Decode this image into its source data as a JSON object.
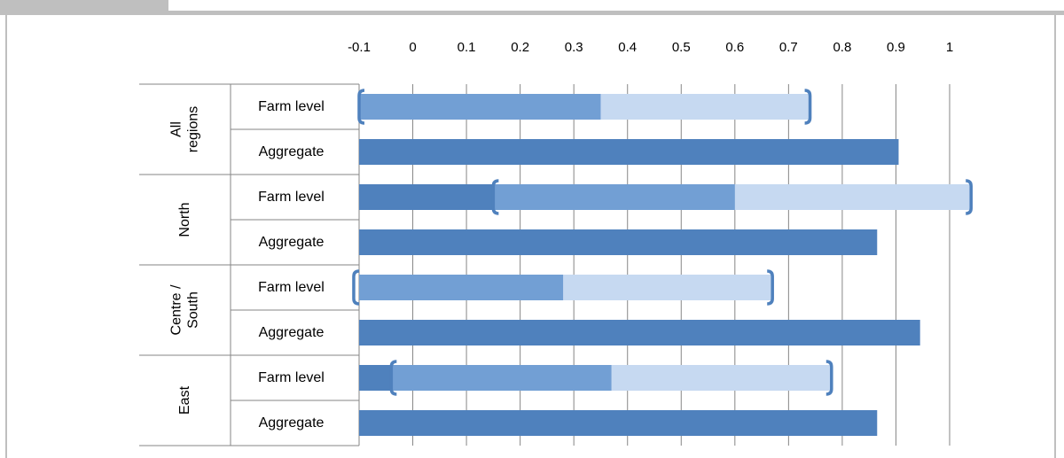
{
  "header": {
    "title_fragment": ""
  },
  "chart_data": {
    "type": "bar",
    "orientation": "horizontal",
    "title": "",
    "xlabel": "",
    "ylabel": "",
    "xlim": [
      -0.1,
      1.0
    ],
    "x_ticks": [
      "-0.1",
      "0",
      "0.1",
      "0.2",
      "0.3",
      "0.4",
      "0.5",
      "0.6",
      "0.7",
      "0.8",
      "0.9",
      "1"
    ],
    "grid": "vertical",
    "legend": "none",
    "colors": {
      "dark_bar": "#4f81bd",
      "mid_bar": "#729fd4",
      "range_band": "#c6d9f1",
      "bracket": "#4f81bd"
    },
    "groups": [
      {
        "label_lines": [
          "All",
          "regions"
        ],
        "rows": [
          {
            "label": "Farm level",
            "value": 0.35,
            "range": [
              -0.1,
              0.74
            ]
          },
          {
            "label": "Aggregate",
            "value": 0.905
          }
        ]
      },
      {
        "label_lines": [
          "North"
        ],
        "rows": [
          {
            "label": "Farm level",
            "value": 0.6,
            "range": [
              0.15,
              1.04
            ]
          },
          {
            "label": "Aggregate",
            "value": 0.865
          }
        ]
      },
      {
        "label_lines": [
          "Centre /",
          "South"
        ],
        "rows": [
          {
            "label": "Farm level",
            "value": 0.28,
            "range": [
              -0.11,
              0.67
            ]
          },
          {
            "label": "Aggregate",
            "value": 0.945
          }
        ]
      },
      {
        "label_lines": [
          "East"
        ],
        "rows": [
          {
            "label": "Farm level",
            "value": 0.37,
            "range": [
              -0.04,
              0.78
            ]
          },
          {
            "label": "Aggregate",
            "value": 0.865
          }
        ]
      }
    ]
  }
}
